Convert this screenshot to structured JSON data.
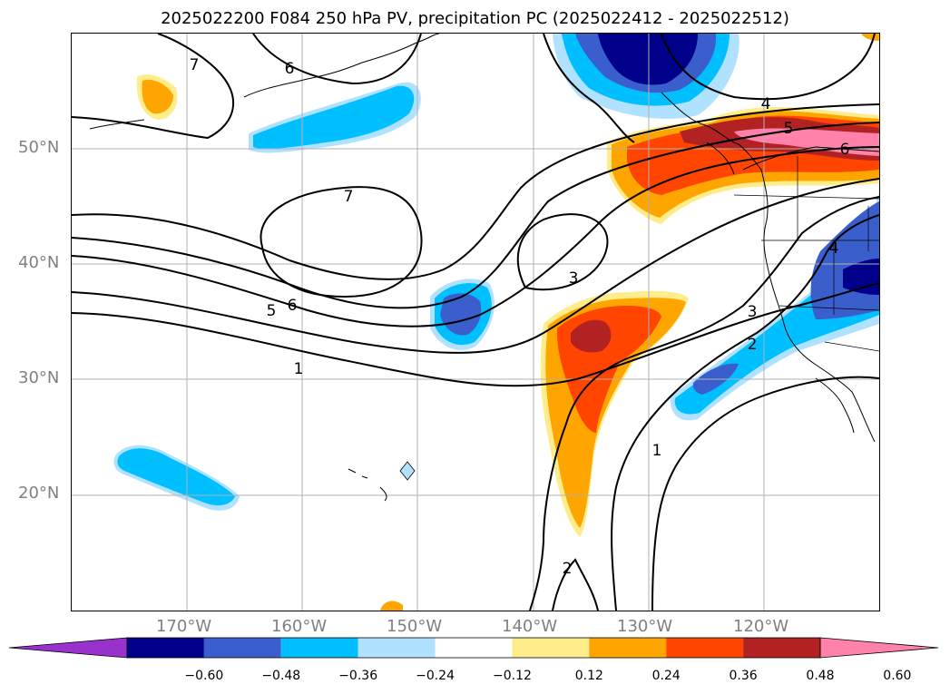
{
  "title": "2025022200 F084 250 hPa PV, precipitation PC (2025022412 - 2025022512)",
  "lat_labels": [
    "50°N",
    "40°N",
    "30°N",
    "20°N"
  ],
  "lon_labels": [
    "170°W",
    "160°W",
    "150°W",
    "140°W",
    "130°W",
    "120°W"
  ],
  "colorbar": {
    "colors": [
      "#9932cc",
      "#00008b",
      "#3a5fcd",
      "#00bfff",
      "#b0e2ff",
      "#ffffff",
      "#ffec8b",
      "#ffa500",
      "#ff4500",
      "#b22222",
      "#ff82ab"
    ],
    "tick_labels": [
      "−0.60",
      "−0.48",
      "−0.36",
      "−0.24",
      "−0.12",
      "0.12",
      "0.24",
      "0.36",
      "0.48",
      "0.60"
    ],
    "extend": "both"
  },
  "contour_labels": [
    "7",
    "6",
    "7",
    "6",
    "5",
    "1",
    "3",
    "4",
    "5",
    "6",
    "4",
    "3",
    "2",
    "1",
    "2"
  ],
  "map": {
    "lon_range": [
      -180,
      -110
    ],
    "lat_range": [
      10,
      60
    ],
    "grid": true
  }
}
